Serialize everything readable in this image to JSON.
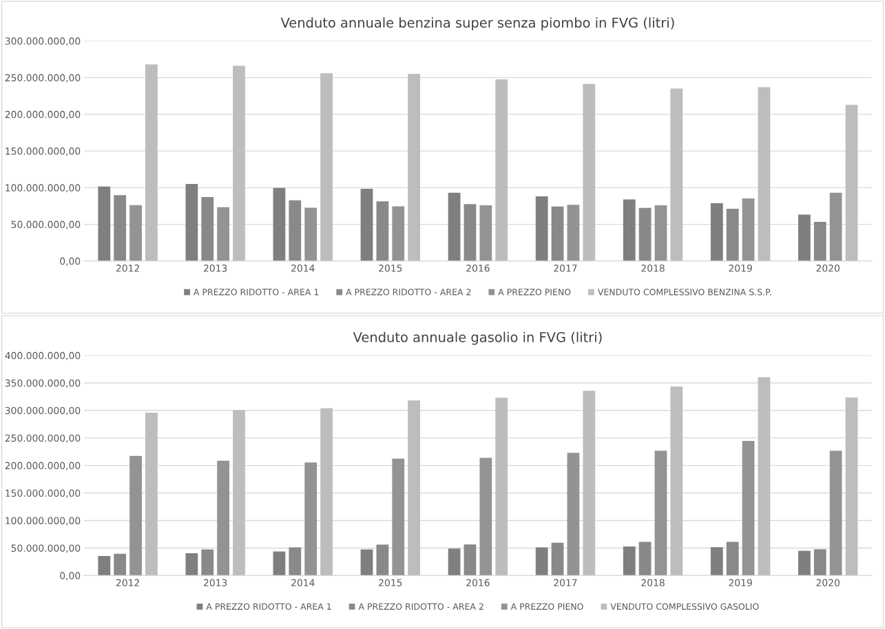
{
  "chart_data": [
    {
      "type": "bar",
      "title": "Venduto annuale benzina super senza piombo in FVG (litri)",
      "categories": [
        "2012",
        "2013",
        "2014",
        "2015",
        "2016",
        "2017",
        "2018",
        "2019",
        "2020"
      ],
      "series": [
        {
          "name": "A PREZZO RIDOTTO - AREA 1",
          "color": "#7f7f7f",
          "values": [
            101600000.0,
            105000000.0,
            99600000.0,
            98400000.0,
            93000000.0,
            88200000.0,
            83900000.0,
            78700000.0,
            63300000.0
          ]
        },
        {
          "name": "A PREZZO RIDOTTO - AREA 2",
          "color": "#898989",
          "values": [
            89800000.0,
            87100000.0,
            82800000.0,
            81300000.0,
            77500000.0,
            74400000.0,
            72400000.0,
            71200000.0,
            53400000.0
          ]
        },
        {
          "name": "A PREZZO PIENO",
          "color": "#939393",
          "values": [
            76200000.0,
            73400000.0,
            72700000.0,
            74600000.0,
            76000000.0,
            76700000.0,
            76000000.0,
            85400000.0,
            93000000.0
          ]
        },
        {
          "name": "VENDUTO COMPLESSIVO BENZINA S.S.P.",
          "color": "#bdbdbd",
          "values": [
            268000000.0,
            266000000.0,
            256000000.0,
            255000000.0,
            247600000.0,
            241300000.0,
            235000000.0,
            237000000.0,
            212800000.0
          ]
        }
      ],
      "ylim": [
        0,
        300000000
      ],
      "yticks": [
        {
          "value": 0,
          "label": "0,00"
        },
        {
          "value": 50000000,
          "label": "50.000.000,00"
        },
        {
          "value": 100000000,
          "label": "100.000.000,00"
        },
        {
          "value": 150000000,
          "label": "150.000.000,00"
        },
        {
          "value": 200000000,
          "label": "200.000.000,00"
        },
        {
          "value": 250000000,
          "label": "250.000.000,00"
        },
        {
          "value": 300000000,
          "label": "300.000.000,00"
        }
      ],
      "grid": "y",
      "legend": "bottom"
    },
    {
      "type": "bar",
      "title": "Venduto annuale gasolio in FVG (litri)",
      "categories": [
        "2012",
        "2013",
        "2014",
        "2015",
        "2016",
        "2017",
        "2018",
        "2019",
        "2020"
      ],
      "series": [
        {
          "name": "A PREZZO RIDOTTO - AREA 1",
          "color": "#7f7f7f",
          "values": [
            35500000.0,
            40700000.0,
            43800000.0,
            47400000.0,
            49000000.0,
            51100000.0,
            52700000.0,
            51600000.0,
            44800000.0
          ]
        },
        {
          "name": "A PREZZO RIDOTTO - AREA 2",
          "color": "#898989",
          "values": [
            39600000.0,
            47400000.0,
            51100000.0,
            56300000.0,
            56400000.0,
            59500000.0,
            61100000.0,
            61100000.0,
            47900000.0
          ]
        },
        {
          "name": "A PREZZO PIENO",
          "color": "#939393",
          "values": [
            217400000.0,
            208600000.0,
            205400000.0,
            212200000.0,
            213900000.0,
            222900000.0,
            226600000.0,
            244500000.0,
            226600000.0
          ]
        },
        {
          "name": "VENDUTO COMPLESSIVO GASOLIO",
          "color": "#bdbdbd",
          "values": [
            296000000.0,
            301000000.0,
            304000000.0,
            318000000.0,
            323000000.0,
            335600000.0,
            343500000.0,
            360400000.0,
            323500000.0
          ]
        }
      ],
      "ylim": [
        0,
        400000000
      ],
      "yticks": [
        {
          "value": 0,
          "label": "0,00"
        },
        {
          "value": 50000000,
          "label": "50.000.000,00"
        },
        {
          "value": 100000000,
          "label": "100.000.000,00"
        },
        {
          "value": 150000000,
          "label": "150.000.000,00"
        },
        {
          "value": 200000000,
          "label": "200.000.000,00"
        },
        {
          "value": 250000000,
          "label": "250.000.000,00"
        },
        {
          "value": 300000000,
          "label": "300.000.000,00"
        },
        {
          "value": 350000000,
          "label": "350.000.000,00"
        },
        {
          "value": 400000000,
          "label": "400.000.000,00"
        }
      ],
      "grid": "y",
      "legend": "bottom"
    }
  ]
}
